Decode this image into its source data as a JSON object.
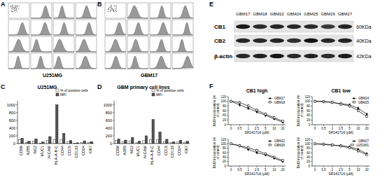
{
  "panel_labels": [
    "A",
    "B",
    "C",
    "D",
    "E",
    "F"
  ],
  "flow": [
    {
      "caption": "U251MG"
    },
    {
      "caption": "GBM17"
    }
  ],
  "blot": {
    "lanes": [
      "GBM17",
      "GBM18",
      "GBM22",
      "GBM24",
      "GBM25",
      "GBM26",
      "GBM27"
    ],
    "bands": [
      {
        "name": "CB1",
        "size": "60KDa"
      },
      {
        "name": "CB2",
        "size": "40KDa"
      },
      {
        "name": "β-actin",
        "size": "42KDa"
      }
    ]
  },
  "chart_data": [
    {
      "type": "bar",
      "title": "U251MG",
      "categories": [
        "CD56",
        "A2B5",
        "NG2",
        "MUC1",
        "N-CAM",
        "HLA-A-B-C",
        "CD44",
        "CD15",
        "CD133",
        "CD24",
        "Ki67"
      ],
      "series": [
        {
          "name": "% of positive cells",
          "color": "#ffffff",
          "values": [
            95,
            30,
            60,
            15,
            85,
            100,
            98,
            45,
            10,
            35,
            25
          ]
        },
        {
          "name": "MFI",
          "color": "#555555",
          "values": [
            140,
            60,
            120,
            40,
            180,
            1000,
            260,
            80,
            20,
            70,
            50
          ]
        }
      ],
      "ylim": [
        0,
        1100
      ],
      "yticks": [
        0,
        200,
        400,
        600,
        800,
        1000
      ],
      "grid": false,
      "legend": "top-right"
    },
    {
      "type": "bar",
      "title": "GBM primary cell lines",
      "categories": [
        "CD56",
        "A2B5",
        "NG2",
        "MUC1",
        "N-CAM",
        "HLA-A-B-C",
        "CD44",
        "CD15",
        "CD133",
        "CD24",
        "Ki67"
      ],
      "series": [
        {
          "name": "% of positive cells",
          "color": "#ffffff",
          "values": [
            80,
            40,
            70,
            20,
            75,
            95,
            100,
            50,
            25,
            40,
            35
          ]
        },
        {
          "name": "MFI",
          "color": "#555555",
          "values": [
            120,
            90,
            160,
            60,
            200,
            620,
            300,
            110,
            40,
            90,
            60
          ]
        }
      ],
      "ylim": [
        0,
        1100
      ],
      "yticks": [
        0,
        200,
        400,
        600,
        800,
        1000
      ],
      "grid": false,
      "legend": "top-right"
    },
    {
      "type": "line",
      "title": "CB1 high",
      "x_label": "SR141716 (μM)",
      "y_label": "BrdU incorporation (% of control)",
      "categories": [
        "0",
        "0.5",
        "1",
        "2.5",
        "5",
        "10",
        "20"
      ],
      "series": [
        {
          "name": "GBM17",
          "color": "#000000",
          "marker": "circle",
          "line_style": "solid",
          "values": [
            100,
            85,
            70,
            55,
            40,
            25,
            10
          ],
          "errors": [
            5,
            6,
            5,
            6,
            5,
            4,
            3
          ]
        },
        {
          "name": "GBM18",
          "color": "#000000",
          "marker": "square",
          "line_style": "solid",
          "values": [
            100,
            95,
            80,
            62,
            45,
            30,
            15
          ],
          "errors": [
            4,
            5,
            6,
            5,
            5,
            4,
            3
          ]
        }
      ],
      "ylim": [
        0,
        120
      ],
      "yticks": [
        0,
        20,
        40,
        60,
        80,
        100,
        120
      ],
      "grid": false,
      "legend": "top-right"
    },
    {
      "type": "line",
      "title": "CB1 low",
      "x_label": "SR141716 (μM)",
      "y_label": "BrdU incorporation (% of control)",
      "categories": [
        "0",
        "0.5",
        "1",
        "2.5",
        "5",
        "10",
        "20"
      ],
      "series": [
        {
          "name": "GBM24",
          "color": "#000000",
          "marker": "circle",
          "line_style": "solid",
          "values": [
            100,
            98,
            95,
            90,
            85,
            70,
            45
          ],
          "errors": [
            4,
            5,
            5,
            6,
            5,
            6,
            5
          ]
        },
        {
          "name": "GBM25",
          "color": "#000000",
          "marker": "square",
          "line_style": "solid",
          "values": [
            100,
            100,
            96,
            88,
            80,
            60,
            35
          ],
          "errors": [
            5,
            4,
            5,
            5,
            6,
            5,
            4
          ]
        }
      ],
      "ylim": [
        0,
        120
      ],
      "yticks": [
        0,
        20,
        40,
        60,
        80,
        100,
        120
      ],
      "grid": false,
      "legend": "top-right"
    },
    {
      "type": "line",
      "x_label": "SR141716 (μM)",
      "y_label": "BrdU incorporation (% of control)",
      "categories": [
        "0",
        "0.5",
        "1",
        "2.5",
        "5",
        "10",
        "20"
      ],
      "series": [
        {
          "name": "GBM22",
          "color": "#000000",
          "marker": "circle",
          "line_style": "solid",
          "values": [
            100,
            90,
            75,
            60,
            50,
            35,
            20
          ],
          "errors": [
            5,
            5,
            6,
            5,
            5,
            4,
            3
          ]
        },
        {
          "name": "GBM26",
          "color": "#000000",
          "marker": "square",
          "line_style": "solid",
          "values": [
            100,
            92,
            82,
            70,
            55,
            40,
            25
          ],
          "errors": [
            4,
            5,
            5,
            6,
            5,
            4,
            4
          ]
        }
      ],
      "ylim": [
        0,
        120
      ],
      "yticks": [
        0,
        20,
        40,
        60,
        80,
        100,
        120
      ],
      "grid": false,
      "legend": "top-right"
    },
    {
      "type": "line",
      "x_label": "SR141716 (μM)",
      "y_label": "BrdU incorporation (% of control)",
      "categories": [
        "0",
        "0.5",
        "1",
        "2.5",
        "5",
        "10",
        "20"
      ],
      "series": [
        {
          "name": "GBM27",
          "color": "#000000",
          "marker": "circle",
          "line_style": "solid",
          "values": [
            100,
            97,
            94,
            92,
            86,
            75,
            55
          ],
          "errors": [
            5,
            4,
            5,
            5,
            6,
            5,
            5
          ]
        },
        {
          "name": "U251MG",
          "color": "#000000",
          "marker": "square",
          "line_style": "solid",
          "values": [
            100,
            99,
            95,
            90,
            82,
            68,
            50
          ],
          "errors": [
            4,
            5,
            4,
            5,
            5,
            6,
            4
          ]
        }
      ],
      "ylim": [
        0,
        120
      ],
      "yticks": [
        0,
        20,
        40,
        60,
        80,
        100,
        120
      ],
      "grid": false,
      "legend": "top-right"
    }
  ]
}
